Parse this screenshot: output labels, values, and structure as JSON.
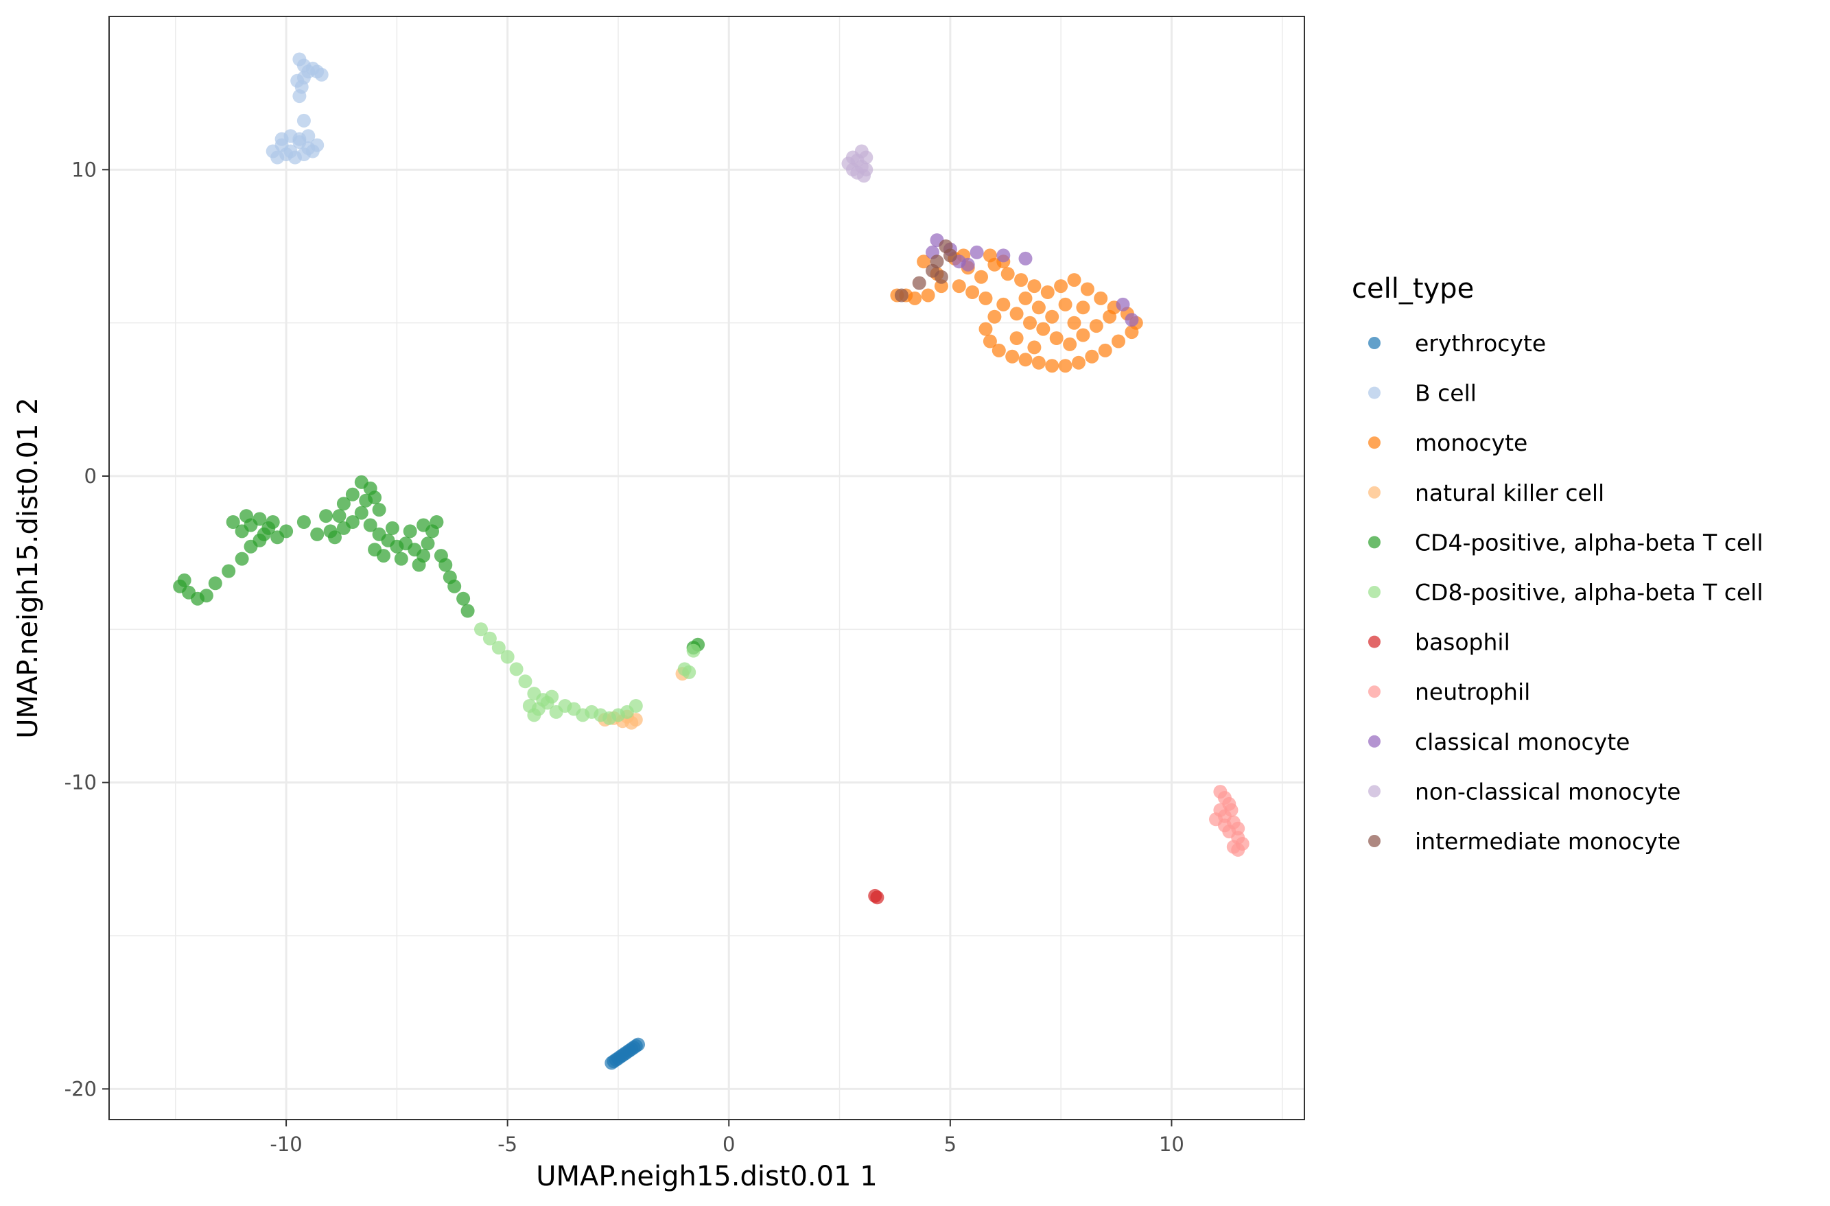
{
  "chart_data": {
    "type": "scatter",
    "title": "",
    "xlabel": "UMAP.neigh15.dist0.01 1",
    "ylabel": "UMAP.neigh15.dist0.01 2",
    "xlim": [
      -14,
      13
    ],
    "ylim": [
      -21,
      15
    ],
    "x_ticks": [
      -10,
      -5,
      0,
      5,
      10
    ],
    "y_ticks": [
      -20,
      -10,
      0,
      10
    ],
    "x_tick_labels": [
      "-10",
      "-5",
      "0",
      "5",
      "10"
    ],
    "y_tick_labels": [
      "-20",
      "-10",
      "0",
      "10"
    ],
    "grid": true,
    "legend_position": "right",
    "legend_title": "cell_type",
    "series": [
      {
        "name": "erythrocyte",
        "color": "#1F77B4",
        "points": [
          [
            -2.65,
            -19.15
          ],
          [
            -2.55,
            -19.05
          ],
          [
            -2.45,
            -18.95
          ],
          [
            -2.35,
            -18.85
          ],
          [
            -2.25,
            -18.75
          ],
          [
            -2.15,
            -18.65
          ],
          [
            -2.05,
            -18.55
          ],
          [
            -2.6,
            -19.1
          ],
          [
            -2.5,
            -19.0
          ],
          [
            -2.4,
            -18.9
          ],
          [
            -2.3,
            -18.8
          ],
          [
            -2.2,
            -18.7
          ],
          [
            -2.1,
            -18.6
          ]
        ]
      },
      {
        "name": "B cell",
        "color": "#AEC7E8",
        "points": [
          [
            -10.3,
            10.6
          ],
          [
            -10.1,
            10.8
          ],
          [
            -9.9,
            10.6
          ],
          [
            -9.7,
            10.9
          ],
          [
            -9.5,
            10.7
          ],
          [
            -9.3,
            10.8
          ],
          [
            -10.2,
            10.4
          ],
          [
            -10.0,
            10.5
          ],
          [
            -9.8,
            10.4
          ],
          [
            -9.6,
            10.5
          ],
          [
            -9.4,
            10.6
          ],
          [
            -10.1,
            11.0
          ],
          [
            -9.9,
            11.1
          ],
          [
            -9.7,
            11.0
          ],
          [
            -9.5,
            11.1
          ],
          [
            -9.6,
            11.6
          ],
          [
            -9.7,
            12.4
          ],
          [
            -9.65,
            12.7
          ],
          [
            -9.6,
            13.0
          ],
          [
            -9.5,
            13.2
          ],
          [
            -9.4,
            13.3
          ],
          [
            -9.3,
            13.2
          ],
          [
            -9.2,
            13.1
          ],
          [
            -9.7,
            13.6
          ],
          [
            -9.6,
            13.4
          ],
          [
            -9.75,
            12.9
          ]
        ]
      },
      {
        "name": "monocyte",
        "color": "#FF7F0E",
        "points": [
          [
            4.4,
            7.0
          ],
          [
            4.7,
            6.6
          ],
          [
            5.1,
            7.1
          ],
          [
            5.4,
            6.8
          ],
          [
            5.7,
            6.5
          ],
          [
            6.0,
            6.9
          ],
          [
            6.3,
            6.6
          ],
          [
            6.6,
            6.4
          ],
          [
            6.9,
            6.2
          ],
          [
            7.2,
            6.0
          ],
          [
            7.5,
            6.2
          ],
          [
            7.8,
            6.4
          ],
          [
            8.1,
            6.1
          ],
          [
            8.4,
            5.8
          ],
          [
            8.7,
            5.5
          ],
          [
            9.0,
            5.3
          ],
          [
            9.2,
            5.0
          ],
          [
            9.1,
            4.7
          ],
          [
            8.8,
            4.4
          ],
          [
            8.5,
            4.1
          ],
          [
            8.2,
            3.9
          ],
          [
            7.9,
            3.7
          ],
          [
            7.6,
            3.6
          ],
          [
            7.3,
            3.6
          ],
          [
            7.0,
            3.7
          ],
          [
            6.7,
            3.8
          ],
          [
            6.4,
            3.9
          ],
          [
            6.1,
            4.1
          ],
          [
            5.9,
            4.4
          ],
          [
            5.8,
            4.8
          ],
          [
            6.0,
            5.2
          ],
          [
            6.2,
            5.6
          ],
          [
            6.5,
            5.3
          ],
          [
            6.8,
            5.0
          ],
          [
            7.1,
            4.8
          ],
          [
            7.4,
            4.5
          ],
          [
            7.7,
            4.3
          ],
          [
            8.0,
            4.6
          ],
          [
            8.3,
            4.9
          ],
          [
            8.6,
            5.2
          ],
          [
            7.6,
            5.6
          ],
          [
            7.3,
            5.2
          ],
          [
            7.0,
            5.5
          ],
          [
            6.7,
            5.8
          ],
          [
            8.0,
            5.5
          ],
          [
            7.8,
            5.0
          ],
          [
            6.5,
            4.5
          ],
          [
            6.9,
            4.2
          ],
          [
            5.2,
            6.2
          ],
          [
            5.5,
            6.0
          ],
          [
            5.8,
            5.8
          ],
          [
            4.0,
            5.9
          ],
          [
            3.8,
            5.9
          ],
          [
            4.2,
            5.8
          ],
          [
            4.5,
            5.9
          ],
          [
            4.8,
            6.2
          ],
          [
            5.3,
            7.2
          ],
          [
            5.9,
            7.2
          ],
          [
            6.2,
            7.0
          ]
        ]
      },
      {
        "name": "natural killer cell",
        "color": "#FFBB78",
        "points": [
          [
            -2.8,
            -7.95
          ],
          [
            -2.6,
            -7.9
          ],
          [
            -2.4,
            -8.0
          ],
          [
            -2.2,
            -8.05
          ],
          [
            -2.1,
            -7.95
          ],
          [
            -2.3,
            -7.85
          ],
          [
            -1.05,
            -6.45
          ]
        ]
      },
      {
        "name": "CD4-positive, alpha-beta T cell",
        "color": "#2CA02C",
        "points": [
          [
            -12.4,
            -3.6
          ],
          [
            -12.2,
            -3.8
          ],
          [
            -12.0,
            -4.0
          ],
          [
            -11.8,
            -3.9
          ],
          [
            -12.3,
            -3.4
          ],
          [
            -11.6,
            -3.5
          ],
          [
            -11.3,
            -3.1
          ],
          [
            -11.0,
            -2.7
          ],
          [
            -10.8,
            -2.3
          ],
          [
            -11.0,
            -1.8
          ],
          [
            -11.2,
            -1.5
          ],
          [
            -10.9,
            -1.3
          ],
          [
            -10.6,
            -1.4
          ],
          [
            -10.4,
            -1.7
          ],
          [
            -10.2,
            -2.0
          ],
          [
            -10.6,
            -2.1
          ],
          [
            -10.8,
            -1.6
          ],
          [
            -10.5,
            -1.9
          ],
          [
            -10.3,
            -1.5
          ],
          [
            -10.0,
            -1.8
          ],
          [
            -9.6,
            -1.5
          ],
          [
            -9.3,
            -1.9
          ],
          [
            -8.9,
            -2.0
          ],
          [
            -8.7,
            -1.7
          ],
          [
            -8.5,
            -1.5
          ],
          [
            -8.3,
            -1.2
          ],
          [
            -8.2,
            -0.8
          ],
          [
            -8.1,
            -0.4
          ],
          [
            -8.3,
            -0.2
          ],
          [
            -8.5,
            -0.6
          ],
          [
            -8.7,
            -0.9
          ],
          [
            -8.0,
            -0.7
          ],
          [
            -7.9,
            -1.1
          ],
          [
            -8.1,
            -1.6
          ],
          [
            -7.9,
            -1.9
          ],
          [
            -7.7,
            -2.1
          ],
          [
            -7.5,
            -2.3
          ],
          [
            -7.3,
            -2.2
          ],
          [
            -7.1,
            -2.4
          ],
          [
            -6.9,
            -2.6
          ],
          [
            -6.8,
            -2.2
          ],
          [
            -6.7,
            -1.8
          ],
          [
            -6.6,
            -1.5
          ],
          [
            -6.9,
            -1.6
          ],
          [
            -7.2,
            -1.8
          ],
          [
            -7.6,
            -1.7
          ],
          [
            -6.5,
            -2.6
          ],
          [
            -6.4,
            -2.9
          ],
          [
            -6.3,
            -3.3
          ],
          [
            -6.2,
            -3.6
          ],
          [
            -6.0,
            -4.0
          ],
          [
            -5.9,
            -4.4
          ],
          [
            -8.0,
            -2.4
          ],
          [
            -7.8,
            -2.6
          ],
          [
            -7.4,
            -2.7
          ],
          [
            -7.0,
            -2.9
          ],
          [
            -9.1,
            -1.3
          ],
          [
            -9.0,
            -1.8
          ],
          [
            -8.8,
            -1.3
          ],
          [
            -0.8,
            -5.6
          ],
          [
            -0.7,
            -5.5
          ]
        ]
      },
      {
        "name": "CD8-positive, alpha-beta T cell",
        "color": "#98DF8A",
        "points": [
          [
            -5.6,
            -5.0
          ],
          [
            -5.4,
            -5.3
          ],
          [
            -5.2,
            -5.6
          ],
          [
            -5.0,
            -5.9
          ],
          [
            -4.8,
            -6.3
          ],
          [
            -4.6,
            -6.7
          ],
          [
            -4.4,
            -7.1
          ],
          [
            -4.5,
            -7.5
          ],
          [
            -4.3,
            -7.6
          ],
          [
            -4.1,
            -7.4
          ],
          [
            -3.9,
            -7.7
          ],
          [
            -3.7,
            -7.5
          ],
          [
            -3.5,
            -7.6
          ],
          [
            -3.3,
            -7.8
          ],
          [
            -3.1,
            -7.7
          ],
          [
            -2.9,
            -7.8
          ],
          [
            -2.7,
            -7.9
          ],
          [
            -2.5,
            -7.8
          ],
          [
            -2.3,
            -7.7
          ],
          [
            -2.1,
            -7.5
          ],
          [
            -4.4,
            -7.8
          ],
          [
            -4.2,
            -7.3
          ],
          [
            -4.0,
            -7.2
          ],
          [
            -0.9,
            -6.4
          ],
          [
            -1.0,
            -6.3
          ],
          [
            -0.8,
            -5.7
          ]
        ]
      },
      {
        "name": "basophil",
        "color": "#D62728",
        "points": [
          [
            3.3,
            -13.7
          ],
          [
            3.35,
            -13.75
          ]
        ]
      },
      {
        "name": "neutrophil",
        "color": "#FF9896",
        "points": [
          [
            11.1,
            -10.3
          ],
          [
            11.2,
            -10.5
          ],
          [
            11.3,
            -10.7
          ],
          [
            11.1,
            -10.9
          ],
          [
            11.2,
            -11.1
          ],
          [
            11.4,
            -11.3
          ],
          [
            11.5,
            -11.5
          ],
          [
            11.3,
            -11.6
          ],
          [
            11.5,
            -11.8
          ],
          [
            11.6,
            -12.0
          ],
          [
            11.4,
            -12.1
          ],
          [
            11.2,
            -11.4
          ],
          [
            11.0,
            -11.2
          ],
          [
            11.35,
            -10.9
          ],
          [
            11.5,
            -12.2
          ]
        ]
      },
      {
        "name": "classical monocyte",
        "color": "#9467BD",
        "points": [
          [
            4.7,
            7.7
          ],
          [
            5.0,
            7.4
          ],
          [
            5.2,
            7.0
          ],
          [
            5.4,
            6.9
          ],
          [
            6.2,
            7.2
          ],
          [
            6.7,
            7.1
          ],
          [
            9.1,
            5.1
          ],
          [
            8.9,
            5.6
          ],
          [
            4.6,
            7.3
          ],
          [
            5.6,
            7.3
          ]
        ]
      },
      {
        "name": "non-classical monocyte",
        "color": "#C5B0D5",
        "points": [
          [
            2.7,
            10.2
          ],
          [
            2.8,
            10.0
          ],
          [
            2.9,
            10.3
          ],
          [
            3.0,
            10.1
          ],
          [
            3.1,
            10.4
          ],
          [
            3.0,
            10.6
          ],
          [
            2.9,
            9.9
          ],
          [
            3.1,
            10.0
          ],
          [
            2.8,
            10.4
          ],
          [
            3.05,
            9.8
          ]
        ]
      },
      {
        "name": "intermediate monocyte",
        "color": "#8C564B",
        "points": [
          [
            4.9,
            7.5
          ],
          [
            4.7,
            7.0
          ],
          [
            4.6,
            6.7
          ],
          [
            5.0,
            7.2
          ],
          [
            4.8,
            6.5
          ],
          [
            4.3,
            6.3
          ],
          [
            3.9,
            5.9
          ]
        ]
      }
    ]
  }
}
